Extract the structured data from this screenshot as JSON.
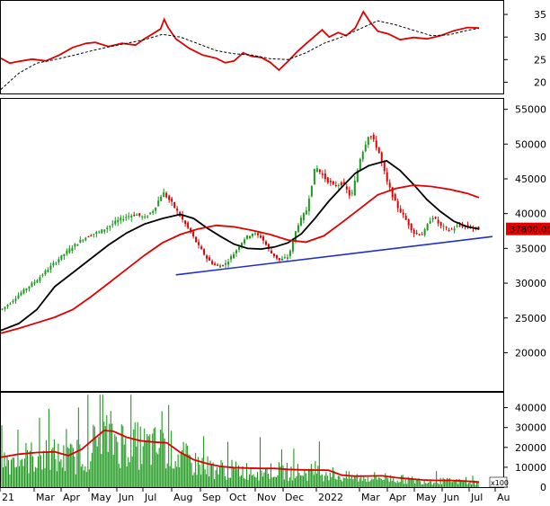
{
  "chart_data": [
    {
      "id": "rsi",
      "type": "line",
      "ylim": [
        17.5,
        38
      ],
      "yticks": [
        "20",
        "25",
        "30",
        "35"
      ],
      "x_range": [
        0,
        560
      ],
      "series": [
        {
          "color": "#e00000",
          "style": "solid",
          "points": [
            [
              0,
              25.3
            ],
            [
              10,
              24.2
            ],
            [
              20,
              24.6
            ],
            [
              35,
              25.1
            ],
            [
              50,
              24.7
            ],
            [
              65,
              26.0
            ],
            [
              80,
              27.7
            ],
            [
              95,
              28.6
            ],
            [
              105,
              28.8
            ],
            [
              120,
              27.9
            ],
            [
              135,
              28.6
            ],
            [
              150,
              28.2
            ],
            [
              160,
              29.6
            ],
            [
              170,
              30.8
            ],
            [
              178,
              31.8
            ],
            [
              182,
              33.9
            ],
            [
              186,
              32.2
            ],
            [
              195,
              29.6
            ],
            [
              210,
              27.5
            ],
            [
              225,
              26.0
            ],
            [
              240,
              25.3
            ],
            [
              250,
              24.3
            ],
            [
              260,
              24.7
            ],
            [
              270,
              26.5
            ],
            [
              280,
              25.7
            ],
            [
              290,
              25.5
            ],
            [
              300,
              24.4
            ],
            [
              310,
              22.7
            ],
            [
              320,
              24.6
            ],
            [
              330,
              26.7
            ],
            [
              340,
              28.5
            ],
            [
              350,
              30.2
            ],
            [
              358,
              31.6
            ],
            [
              366,
              30.0
            ],
            [
              376,
              31.0
            ],
            [
              385,
              30.3
            ],
            [
              395,
              32.0
            ],
            [
              404,
              35.6
            ],
            [
              412,
              33.2
            ],
            [
              420,
              31.3
            ],
            [
              432,
              30.7
            ],
            [
              445,
              29.4
            ],
            [
              460,
              29.9
            ],
            [
              475,
              29.6
            ],
            [
              490,
              30.3
            ],
            [
              505,
              31.4
            ],
            [
              520,
              32.1
            ],
            [
              533,
              32.0
            ]
          ]
        },
        {
          "color": "#000000",
          "style": "dashed",
          "points": [
            [
              0,
              18.4
            ],
            [
              20,
              22.0
            ],
            [
              40,
              24.2
            ],
            [
              60,
              25.0
            ],
            [
              80,
              25.9
            ],
            [
              100,
              26.9
            ],
            [
              120,
              27.8
            ],
            [
              140,
              28.6
            ],
            [
              160,
              29.4
            ],
            [
              180,
              30.6
            ],
            [
              200,
              30.0
            ],
            [
              220,
              28.5
            ],
            [
              240,
              27.0
            ],
            [
              260,
              26.3
            ],
            [
              280,
              26.0
            ],
            [
              300,
              25.2
            ],
            [
              320,
              25.0
            ],
            [
              340,
              26.5
            ],
            [
              360,
              28.6
            ],
            [
              380,
              30.0
            ],
            [
              400,
              31.8
            ],
            [
              420,
              33.6
            ],
            [
              440,
              32.7
            ],
            [
              460,
              31.5
            ],
            [
              480,
              30.3
            ],
            [
              500,
              30.5
            ],
            [
              520,
              31.5
            ],
            [
              533,
              31.9
            ]
          ]
        }
      ]
    },
    {
      "id": "price",
      "type": "line",
      "ylim": [
        14500,
        56500
      ],
      "yticks": [
        "20000",
        "25000",
        "30000",
        "35000",
        "40000",
        "45000",
        "50000",
        "55000"
      ],
      "x_range": [
        0,
        560
      ],
      "last_price_label": "37800.00",
      "price_points": [
        [
          0,
          26200
        ],
        [
          10,
          27200
        ],
        [
          20,
          28400
        ],
        [
          30,
          29500
        ],
        [
          40,
          30500
        ],
        [
          50,
          31800
        ],
        [
          60,
          33000
        ],
        [
          70,
          34200
        ],
        [
          80,
          35300
        ],
        [
          90,
          36300
        ],
        [
          100,
          37000
        ],
        [
          110,
          37400
        ],
        [
          120,
          38200
        ],
        [
          130,
          39000
        ],
        [
          140,
          39600
        ],
        [
          150,
          39900
        ],
        [
          160,
          39400
        ],
        [
          170,
          40600
        ],
        [
          180,
          43100
        ],
        [
          190,
          41500
        ],
        [
          200,
          39500
        ],
        [
          210,
          37500
        ],
        [
          220,
          35300
        ],
        [
          230,
          33400
        ],
        [
          240,
          32400
        ],
        [
          250,
          32800
        ],
        [
          260,
          34400
        ],
        [
          270,
          36300
        ],
        [
          280,
          37200
        ],
        [
          290,
          36600
        ],
        [
          300,
          34400
        ],
        [
          310,
          33300
        ],
        [
          320,
          33800
        ],
        [
          330,
          38300
        ],
        [
          340,
          40500
        ],
        [
          350,
          46800
        ],
        [
          360,
          45200
        ],
        [
          370,
          44000
        ],
        [
          380,
          44400
        ],
        [
          390,
          42300
        ],
        [
          400,
          48000
        ],
        [
          410,
          51600
        ],
        [
          420,
          49200
        ],
        [
          430,
          44500
        ],
        [
          440,
          41300
        ],
        [
          450,
          39300
        ],
        [
          460,
          37200
        ],
        [
          470,
          37000
        ],
        [
          480,
          39700
        ],
        [
          490,
          38200
        ],
        [
          500,
          37600
        ],
        [
          510,
          38300
        ],
        [
          520,
          38100
        ],
        [
          533,
          37800
        ]
      ],
      "series": [
        {
          "color": "#000000",
          "points": [
            [
              0,
              23200
            ],
            [
              20,
              24200
            ],
            [
              40,
              26200
            ],
            [
              60,
              29500
            ],
            [
              80,
              31500
            ],
            [
              100,
              33500
            ],
            [
              120,
              35500
            ],
            [
              140,
              37200
            ],
            [
              160,
              38500
            ],
            [
              180,
              39300
            ],
            [
              200,
              39900
            ],
            [
              215,
              39300
            ],
            [
              230,
              37900
            ],
            [
              245,
              36700
            ],
            [
              260,
              35600
            ],
            [
              275,
              35000
            ],
            [
              290,
              34900
            ],
            [
              305,
              35200
            ],
            [
              320,
              35800
            ],
            [
              335,
              37100
            ],
            [
              350,
              39300
            ],
            [
              365,
              41700
            ],
            [
              380,
              43800
            ],
            [
              395,
              45800
            ],
            [
              410,
              46900
            ],
            [
              430,
              47600
            ],
            [
              445,
              46200
            ],
            [
              460,
              44200
            ],
            [
              475,
              42000
            ],
            [
              490,
              40300
            ],
            [
              505,
              38900
            ],
            [
              520,
              38100
            ],
            [
              533,
              37800
            ]
          ]
        },
        {
          "color": "#e00000",
          "points": [
            [
              0,
              22800
            ],
            [
              20,
              23500
            ],
            [
              40,
              24300
            ],
            [
              60,
              25100
            ],
            [
              80,
              26200
            ],
            [
              100,
              28000
            ],
            [
              120,
              30000
            ],
            [
              140,
              32000
            ],
            [
              160,
              34000
            ],
            [
              180,
              35800
            ],
            [
              200,
              37000
            ],
            [
              220,
              37800
            ],
            [
              240,
              38300
            ],
            [
              260,
              38100
            ],
            [
              280,
              37600
            ],
            [
              300,
              37000
            ],
            [
              320,
              36200
            ],
            [
              340,
              35900
            ],
            [
              360,
              36800
            ],
            [
              380,
              38700
            ],
            [
              400,
              40700
            ],
            [
              420,
              42700
            ],
            [
              440,
              43600
            ],
            [
              460,
              44100
            ],
            [
              480,
              43900
            ],
            [
              500,
              43500
            ],
            [
              520,
              42900
            ],
            [
              533,
              42300
            ]
          ]
        },
        {
          "color": "#1f2fd0",
          "points": [
            [
              195,
              31200
            ],
            [
              548,
              36700
            ]
          ]
        }
      ]
    },
    {
      "id": "volume",
      "type": "bar",
      "ylim": [
        0,
        47500
      ],
      "yticks": [
        "0",
        "10000",
        "20000",
        "30000",
        "40000"
      ],
      "unit_label": "x100",
      "x_range": [
        0,
        560
      ],
      "bar_color": "#1e9a1e",
      "ma_color": "#e00000",
      "ma_points": [
        [
          0,
          15000
        ],
        [
          20,
          16600
        ],
        [
          40,
          17400
        ],
        [
          60,
          17800
        ],
        [
          75,
          15900
        ],
        [
          90,
          19000
        ],
        [
          105,
          24800
        ],
        [
          115,
          28500
        ],
        [
          125,
          28200
        ],
        [
          140,
          25100
        ],
        [
          155,
          23400
        ],
        [
          170,
          22700
        ],
        [
          185,
          22300
        ],
        [
          200,
          17500
        ],
        [
          215,
          13800
        ],
        [
          230,
          11800
        ],
        [
          245,
          10400
        ],
        [
          260,
          9800
        ],
        [
          275,
          9600
        ],
        [
          290,
          9400
        ],
        [
          305,
          9400
        ],
        [
          320,
          8900
        ],
        [
          335,
          8700
        ],
        [
          350,
          8600
        ],
        [
          365,
          8500
        ],
        [
          380,
          6000
        ],
        [
          395,
          5500
        ],
        [
          410,
          5600
        ],
        [
          425,
          5700
        ],
        [
          440,
          4800
        ],
        [
          455,
          4200
        ],
        [
          470,
          3600
        ],
        [
          485,
          3400
        ],
        [
          500,
          3400
        ],
        [
          515,
          3100
        ],
        [
          533,
          2600
        ]
      ]
    }
  ],
  "x_axis": {
    "labels": [
      {
        "text": "21",
        "x": 5
      },
      {
        "text": "Mar",
        "x": 43
      },
      {
        "text": "Apr",
        "x": 73
      },
      {
        "text": "May",
        "x": 104
      },
      {
        "text": "Jun",
        "x": 135
      },
      {
        "text": "Jul",
        "x": 164
      },
      {
        "text": "Aug",
        "x": 196
      },
      {
        "text": "Sep",
        "x": 228
      },
      {
        "text": "Oct",
        "x": 258
      },
      {
        "text": "Nov",
        "x": 289
      },
      {
        "text": "Dec",
        "x": 320
      },
      {
        "text": "2022",
        "x": 357
      },
      {
        "text": "Mar",
        "x": 405
      },
      {
        "text": "Apr",
        "x": 436
      },
      {
        "text": "May",
        "x": 466
      },
      {
        "text": "Jun",
        "x": 497
      },
      {
        "text": "Jul",
        "x": 527
      },
      {
        "text": "Au",
        "x": 556
      }
    ]
  }
}
